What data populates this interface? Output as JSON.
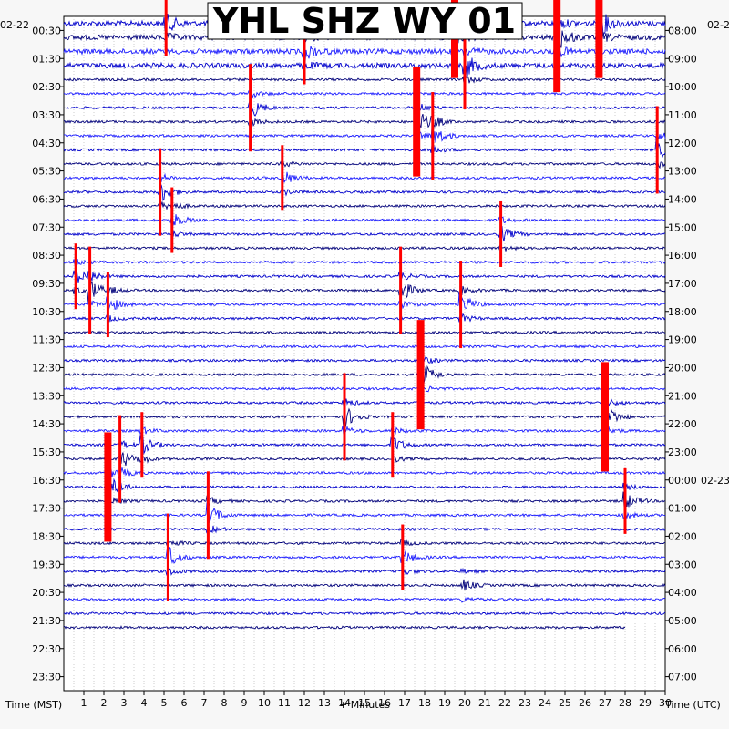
{
  "chart_data": {
    "type": "helicorder",
    "title": "YHL SHZ WY 01",
    "xlabel": "+ Minutes",
    "left_axis_label": "Time (MST)",
    "right_axis_label": "Time (UTC)",
    "left_date": "02-22",
    "right_date_top": "02-2",
    "right_date_mid": "02-23",
    "x_ticks": [
      1,
      2,
      3,
      4,
      5,
      6,
      7,
      8,
      9,
      10,
      11,
      12,
      13,
      14,
      15,
      16,
      17,
      18,
      19,
      20,
      21,
      22,
      23,
      24,
      25,
      26,
      27,
      28,
      29,
      30
    ],
    "xlim": [
      0,
      30
    ],
    "left_ticks": [
      "00:30",
      "01:30",
      "02:30",
      "03:30",
      "04:30",
      "05:30",
      "06:30",
      "07:30",
      "08:30",
      "09:30",
      "10:30",
      "11:30",
      "12:30",
      "13:30",
      "14:30",
      "15:30",
      "16:30",
      "17:30",
      "18:30",
      "19:30",
      "20:30",
      "21:30",
      "22:30",
      "23:30"
    ],
    "right_ticks": [
      "08:00",
      "09:00",
      "10:00",
      "11:00",
      "12:00",
      "13:00",
      "14:00",
      "15:00",
      "16:00",
      "17:00",
      "18:00",
      "19:00",
      "20:00",
      "21:00",
      "22:00",
      "23:00",
      "00:00",
      "01:00",
      "02:00",
      "03:00",
      "04:00",
      "05:00",
      "06:00",
      "07:00"
    ],
    "trace_rows": 44,
    "trace_colors": [
      "#0000cc",
      "#00007a",
      "#1a1aff"
    ],
    "clip_color": "#ff0000",
    "events": [
      {
        "minute": 5.1,
        "row": 0,
        "size": 3
      },
      {
        "minute": 19.5,
        "row": 0,
        "size": 5
      },
      {
        "minute": 26.7,
        "row": 0,
        "size": 5
      },
      {
        "minute": 24.6,
        "row": 1,
        "size": 5
      },
      {
        "minute": 20.0,
        "row": 3,
        "size": 4
      },
      {
        "minute": 12.0,
        "row": 2,
        "size": 3
      },
      {
        "minute": 9.3,
        "row": 6,
        "size": 4
      },
      {
        "minute": 17.6,
        "row": 7,
        "size": 5
      },
      {
        "minute": 18.4,
        "row": 8,
        "size": 4
      },
      {
        "minute": 29.6,
        "row": 9,
        "size": 4
      },
      {
        "minute": 4.8,
        "row": 12,
        "size": 4
      },
      {
        "minute": 5.4,
        "row": 14,
        "size": 3
      },
      {
        "minute": 21.8,
        "row": 15,
        "size": 3
      },
      {
        "minute": 1.3,
        "row": 19,
        "size": 4
      },
      {
        "minute": 2.2,
        "row": 20,
        "size": 3
      },
      {
        "minute": 16.8,
        "row": 19,
        "size": 4
      },
      {
        "minute": 19.8,
        "row": 20,
        "size": 4
      },
      {
        "minute": 17.8,
        "row": 25,
        "size": 5
      },
      {
        "minute": 14.0,
        "row": 28,
        "size": 4
      },
      {
        "minute": 16.4,
        "row": 30,
        "size": 3
      },
      {
        "minute": 27.0,
        "row": 28,
        "size": 5
      },
      {
        "minute": 2.2,
        "row": 33,
        "size": 5
      },
      {
        "minute": 2.8,
        "row": 31,
        "size": 4
      },
      {
        "minute": 3.9,
        "row": 30,
        "size": 3
      },
      {
        "minute": 7.2,
        "row": 35,
        "size": 4
      },
      {
        "minute": 5.2,
        "row": 38,
        "size": 4
      },
      {
        "minute": 16.9,
        "row": 38,
        "size": 3
      },
      {
        "minute": 19.9,
        "row": 40,
        "size": 2
      },
      {
        "minute": 28.0,
        "row": 34,
        "size": 3
      },
      {
        "minute": 0.6,
        "row": 18,
        "size": 3
      },
      {
        "minute": 10.9,
        "row": 11,
        "size": 3
      }
    ]
  }
}
